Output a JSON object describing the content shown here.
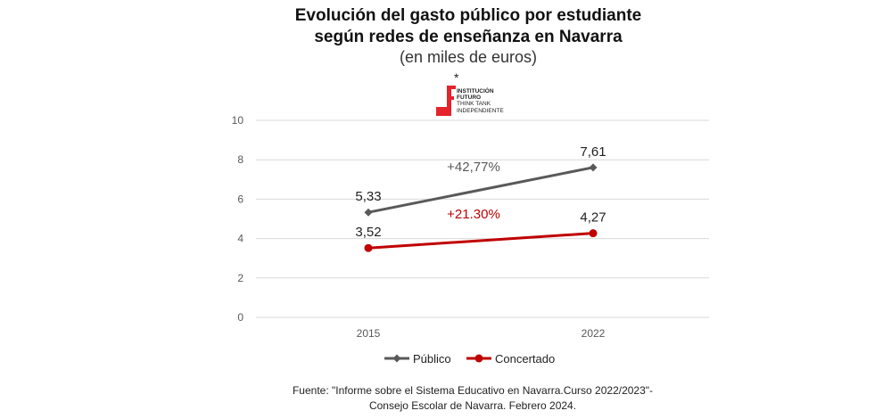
{
  "header": {
    "title_line1": "Evolución del gasto público por estudiante",
    "title_line2": "según redes de enseñanza en Navarra",
    "subtitle": "(en miles de euros)",
    "asterisk": "*"
  },
  "logo": {
    "line1": "INSTITUCIÓN",
    "line2": "FUTURO",
    "line3": "THINK TANK",
    "line4": "INDEPENDIENTE",
    "color": "#e4232a"
  },
  "chart_data": {
    "type": "line",
    "categories": [
      "2015",
      "2022"
    ],
    "ylim": [
      0,
      10
    ],
    "yticks": [
      "0",
      "2",
      "4",
      "6",
      "8",
      "10"
    ],
    "grid": true,
    "legend_position": "bottom",
    "series": [
      {
        "name": "Público",
        "values": [
          5.33,
          7.61
        ],
        "labels": [
          "5,33",
          "7,61"
        ],
        "color": "#595959",
        "marker": "diamond"
      },
      {
        "name": "Concertado",
        "values": [
          3.52,
          4.27
        ],
        "labels": [
          "3,52",
          "4,27"
        ],
        "color": "#c00000",
        "marker": "circle"
      }
    ],
    "annotations": [
      {
        "text": "+42,77%",
        "series": "Público",
        "color": "#595959"
      },
      {
        "text": "+21.30%",
        "series": "Concertado",
        "color": "#c00000"
      }
    ]
  },
  "footer": {
    "source_line1": "Fuente: \"Informe sobre el Sistema Educativo en Navarra.Curso 2022/2023\"-",
    "source_line2": "Consejo Escolar de Navarra. Febrero 2024."
  }
}
